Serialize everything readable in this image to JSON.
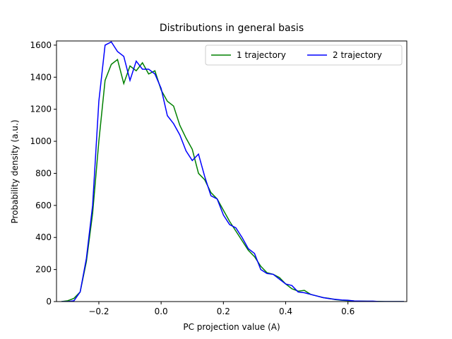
{
  "chart_data": {
    "type": "line",
    "title": "Distributions in general basis",
    "xlabel": "PC projection value (A)",
    "ylabel": "Probability density (a.u.)",
    "x": [
      -0.32,
      -0.3,
      -0.28,
      -0.26,
      -0.24,
      -0.22,
      -0.2,
      -0.18,
      -0.16,
      -0.14,
      -0.12,
      -0.1,
      -0.08,
      -0.06,
      -0.04,
      -0.02,
      0.0,
      0.02,
      0.04,
      0.06,
      0.08,
      0.1,
      0.12,
      0.14,
      0.16,
      0.18,
      0.2,
      0.22,
      0.24,
      0.26,
      0.28,
      0.3,
      0.32,
      0.34,
      0.36,
      0.38,
      0.4,
      0.42,
      0.44,
      0.46,
      0.48,
      0.5,
      0.52,
      0.54,
      0.56,
      0.58,
      0.6,
      0.62,
      0.64,
      0.66,
      0.68,
      0.7,
      0.72,
      0.74,
      0.76,
      0.78
    ],
    "series": [
      {
        "name": "1 trajectory",
        "color": "#008000",
        "values": [
          0,
          5,
          20,
          60,
          250,
          550,
          1000,
          1380,
          1480,
          1510,
          1360,
          1470,
          1440,
          1490,
          1420,
          1440,
          1320,
          1250,
          1220,
          1100,
          1020,
          950,
          800,
          760,
          680,
          640,
          570,
          500,
          440,
          380,
          320,
          280,
          220,
          180,
          170,
          150,
          110,
          80,
          65,
          70,
          45,
          35,
          25,
          20,
          12,
          8,
          6,
          4,
          3,
          2,
          1,
          1,
          0,
          0,
          0,
          0
        ]
      },
      {
        "name": "2 trajectory",
        "color": "#0000ff",
        "values": [
          0,
          0,
          5,
          60,
          270,
          600,
          1250,
          1600,
          1620,
          1560,
          1530,
          1380,
          1500,
          1450,
          1450,
          1420,
          1330,
          1160,
          1110,
          1040,
          940,
          880,
          920,
          780,
          660,
          640,
          540,
          480,
          460,
          400,
          330,
          300,
          200,
          175,
          170,
          140,
          110,
          100,
          60,
          55,
          45,
          35,
          25,
          18,
          14,
          10,
          8,
          4,
          3,
          2,
          3,
          0,
          0,
          0,
          0,
          0
        ]
      }
    ],
    "xlim": [
      -0.336,
      0.789
    ],
    "ylim": [
      0,
      1626
    ],
    "xticks": [
      {
        "value": -0.2,
        "label": "−0.2"
      },
      {
        "value": 0,
        "label": "0.0"
      },
      {
        "value": 0.2,
        "label": "0.2"
      },
      {
        "value": 0.4,
        "label": "0.4"
      },
      {
        "value": 0.6,
        "label": "0.6"
      }
    ],
    "yticks": [
      0,
      200,
      400,
      600,
      800,
      1000,
      1200,
      1400,
      1600
    ],
    "legend": "upper right",
    "legend_columns": 2
  }
}
